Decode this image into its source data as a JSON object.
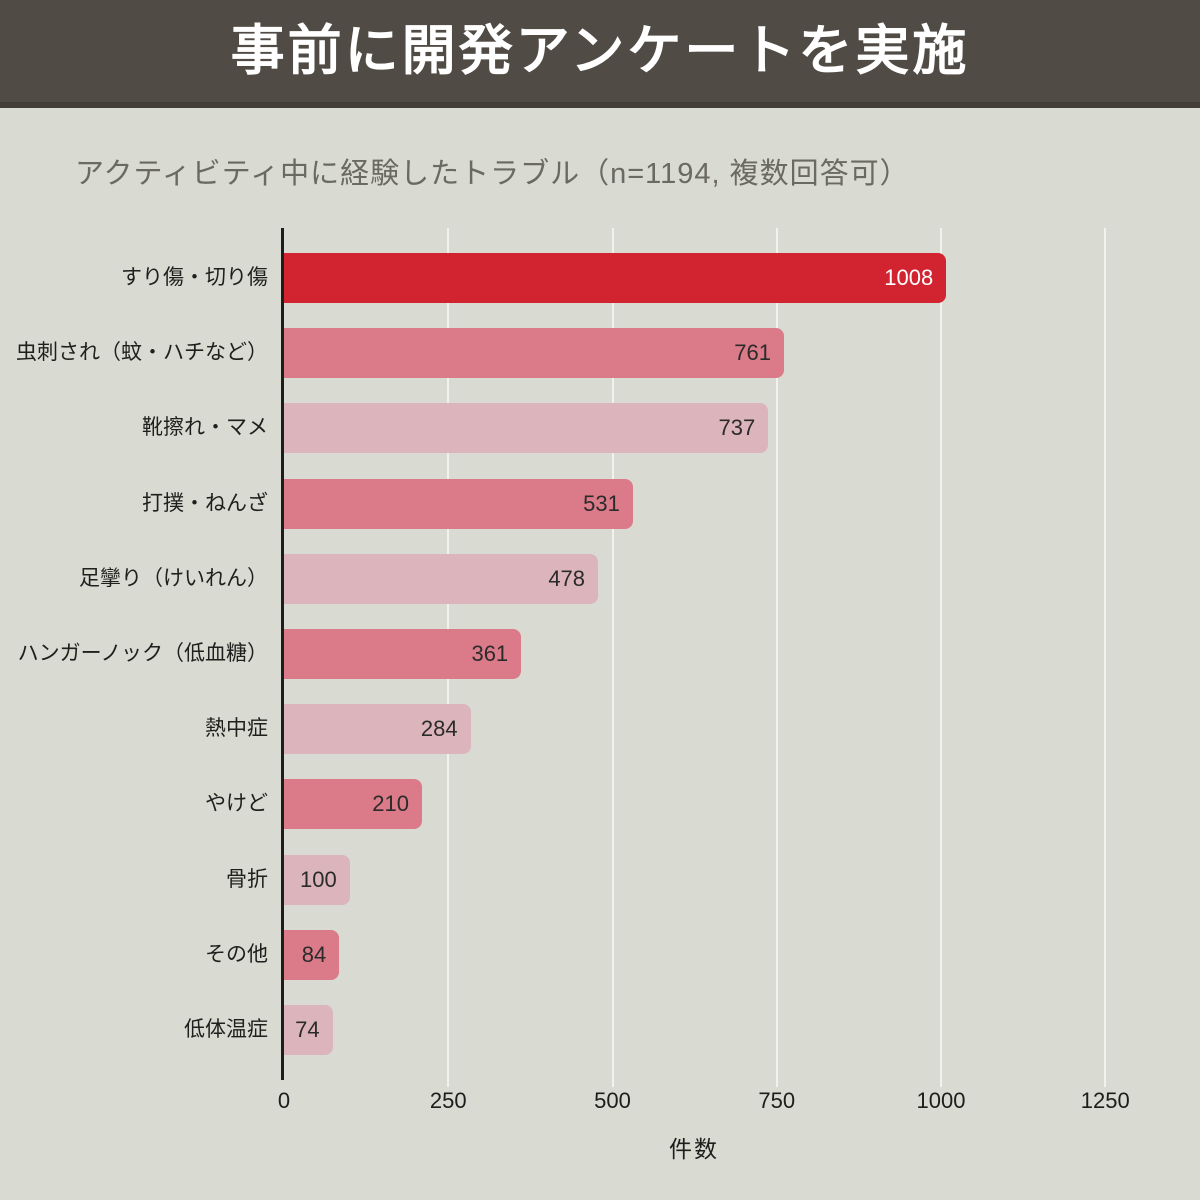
{
  "page": {
    "background_color": "#d9dad1"
  },
  "header": {
    "title": "事前に開発アンケートを実施",
    "bg_color": "#514b45",
    "text_color": "#ffffff"
  },
  "chart_data": {
    "type": "bar",
    "orientation": "horizontal",
    "title": "アクティビティ中に経験したトラブル（n=1194, 複数回答可）",
    "categories": [
      "すり傷・切り傷",
      "虫刺され（蚊・ハチなど）",
      "靴擦れ・マメ",
      "打撲・ねんざ",
      "足攣り（けいれん）",
      "ハンガーノック（低血糖）",
      "熱中症",
      "やけど",
      "骨折",
      "その他",
      "低体温症"
    ],
    "values": [
      1008,
      761,
      737,
      531,
      478,
      361,
      284,
      210,
      100,
      84,
      74
    ],
    "bar_colors": [
      "#d22330",
      "#db7b89",
      "#dcb4bc",
      "#db7b89",
      "#dcb4bc",
      "#db7b89",
      "#dcb4bc",
      "#db7b89",
      "#dcb4bc",
      "#db7b89",
      "#dcb4bc"
    ],
    "value_label_colors": [
      "#ffffff",
      "#2b2b2b",
      "#2b2b2b",
      "#2b2b2b",
      "#2b2b2b",
      "#2b2b2b",
      "#2b2b2b",
      "#2b2b2b",
      "#2b2b2b",
      "#2b2b2b",
      "#2b2b2b"
    ],
    "xlabel": "件数",
    "x_ticks": [
      0,
      250,
      500,
      750,
      1000,
      1250
    ],
    "xlim": [
      0,
      1340
    ],
    "grid": true,
    "grid_color": "rgba(255,255,255,0.62)",
    "axis_color": "#1d1d1b",
    "legend": false
  }
}
